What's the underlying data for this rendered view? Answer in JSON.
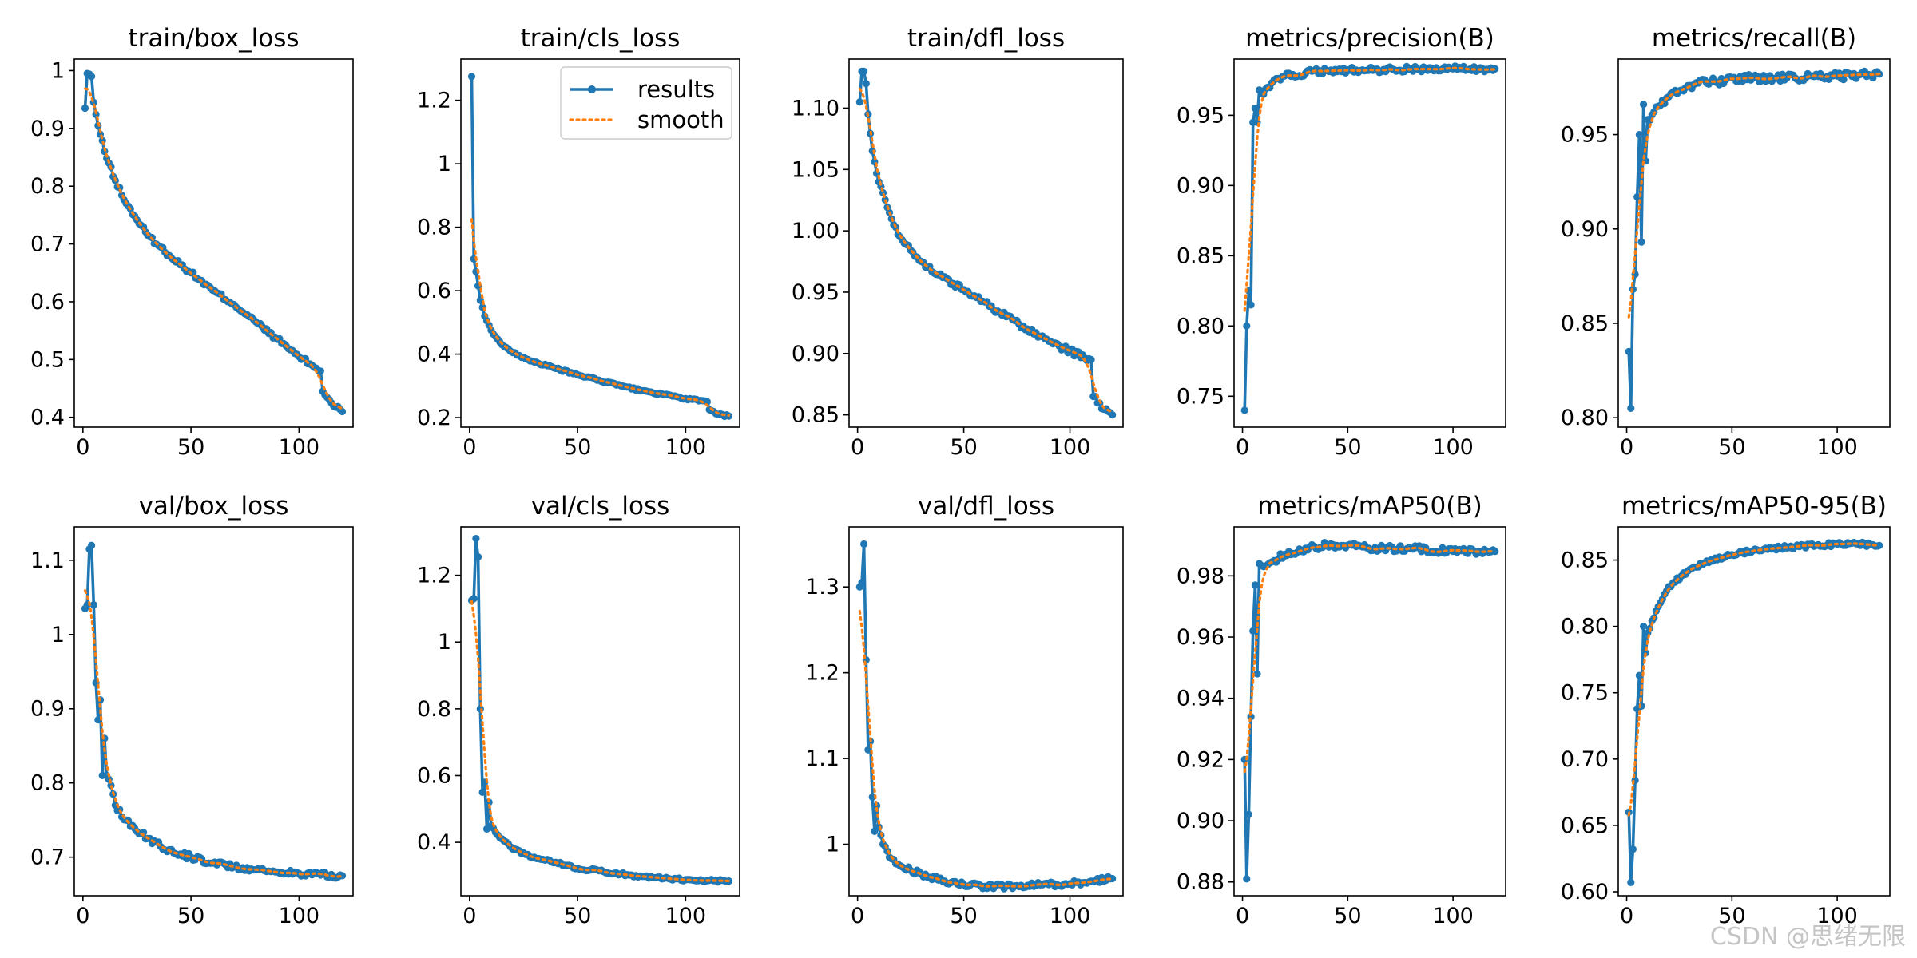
{
  "watermark": "CSDN @思绪无限",
  "colors": {
    "results": "#1f77b4",
    "smooth": "#ff7f0e",
    "axis": "#000000",
    "background": "#ffffff"
  },
  "legend": {
    "results_label": "results",
    "smooth_label": "smooth",
    "panel": "train/cls_loss",
    "placement": "upper-right"
  },
  "chart_data": [
    {
      "type": "line",
      "title": "train/box_loss",
      "xlim": [
        -4,
        125
      ],
      "ylim": [
        0.383,
        1.02
      ],
      "xticks": [
        0,
        50,
        100
      ],
      "yticks": [
        0.4,
        0.5,
        0.6,
        0.7,
        0.8,
        0.9,
        1.0
      ],
      "x_end": 120,
      "anchors": [
        [
          1,
          0.935
        ],
        [
          2,
          0.995
        ],
        [
          4,
          0.99
        ],
        [
          5,
          0.945
        ],
        [
          7,
          0.905
        ],
        [
          10,
          0.86
        ],
        [
          15,
          0.81
        ],
        [
          20,
          0.77
        ],
        [
          30,
          0.715
        ],
        [
          40,
          0.68
        ],
        [
          50,
          0.65
        ],
        [
          60,
          0.62
        ],
        [
          70,
          0.595
        ],
        [
          80,
          0.565
        ],
        [
          90,
          0.535
        ],
        [
          100,
          0.505
        ],
        [
          108,
          0.485
        ],
        [
          110,
          0.48
        ],
        [
          111,
          0.445
        ],
        [
          115,
          0.425
        ],
        [
          120,
          0.41
        ]
      ],
      "noise": 0.004
    },
    {
      "type": "line",
      "title": "train/cls_loss",
      "xlim": [
        -4,
        125
      ],
      "ylim": [
        0.17,
        1.33
      ],
      "xticks": [
        0,
        50,
        100
      ],
      "yticks": [
        0.2,
        0.4,
        0.6,
        0.8,
        1.0,
        1.2
      ],
      "x_end": 120,
      "anchors": [
        [
          1,
          1.275
        ],
        [
          2,
          0.7
        ],
        [
          3,
          0.66
        ],
        [
          5,
          0.57
        ],
        [
          7,
          0.52
        ],
        [
          10,
          0.475
        ],
        [
          15,
          0.43
        ],
        [
          20,
          0.405
        ],
        [
          30,
          0.375
        ],
        [
          40,
          0.355
        ],
        [
          50,
          0.335
        ],
        [
          60,
          0.318
        ],
        [
          70,
          0.3
        ],
        [
          80,
          0.285
        ],
        [
          90,
          0.272
        ],
        [
          100,
          0.26
        ],
        [
          110,
          0.25
        ],
        [
          111,
          0.225
        ],
        [
          115,
          0.21
        ],
        [
          120,
          0.205
        ]
      ],
      "noise": 0.003
    },
    {
      "type": "line",
      "title": "train/dfl_loss",
      "xlim": [
        -4,
        125
      ],
      "ylim": [
        0.84,
        1.14
      ],
      "xticks": [
        0,
        50,
        100
      ],
      "yticks": [
        0.85,
        0.9,
        0.95,
        1.0,
        1.05,
        1.1
      ],
      "x_end": 120,
      "anchors": [
        [
          1,
          1.105
        ],
        [
          2,
          1.13
        ],
        [
          3,
          1.13
        ],
        [
          4,
          1.12
        ],
        [
          5,
          1.095
        ],
        [
          7,
          1.065
        ],
        [
          10,
          1.04
        ],
        [
          15,
          1.015
        ],
        [
          20,
          0.995
        ],
        [
          30,
          0.975
        ],
        [
          40,
          0.962
        ],
        [
          50,
          0.952
        ],
        [
          60,
          0.942
        ],
        [
          70,
          0.93
        ],
        [
          80,
          0.92
        ],
        [
          90,
          0.91
        ],
        [
          100,
          0.902
        ],
        [
          110,
          0.895
        ],
        [
          111,
          0.865
        ],
        [
          115,
          0.855
        ],
        [
          120,
          0.85
        ]
      ],
      "noise": 0.0025
    },
    {
      "type": "line",
      "title": "metrics/precision(B)",
      "xlim": [
        -4,
        125
      ],
      "ylim": [
        0.728,
        0.99
      ],
      "xticks": [
        0,
        50,
        100
      ],
      "yticks": [
        0.75,
        0.8,
        0.85,
        0.9,
        0.95
      ],
      "x_end": 120,
      "anchors": [
        [
          1,
          0.74
        ],
        [
          2,
          0.8
        ],
        [
          3,
          0.825
        ],
        [
          4,
          0.815
        ],
        [
          5,
          0.945
        ],
        [
          6,
          0.955
        ],
        [
          7,
          0.945
        ],
        [
          8,
          0.968
        ],
        [
          10,
          0.965
        ],
        [
          15,
          0.975
        ],
        [
          20,
          0.978
        ],
        [
          30,
          0.98
        ],
        [
          40,
          0.982
        ],
        [
          60,
          0.982
        ],
        [
          80,
          0.983
        ],
        [
          100,
          0.983
        ],
        [
          120,
          0.983
        ]
      ],
      "noise": 0.002
    },
    {
      "type": "line",
      "title": "metrics/recall(B)",
      "xlim": [
        -4,
        125
      ],
      "ylim": [
        0.795,
        0.99
      ],
      "xticks": [
        0,
        50,
        100
      ],
      "yticks": [
        0.8,
        0.85,
        0.9,
        0.95
      ],
      "x_end": 120,
      "anchors": [
        [
          1,
          0.835
        ],
        [
          2,
          0.805
        ],
        [
          3,
          0.868
        ],
        [
          4,
          0.876
        ],
        [
          5,
          0.917
        ],
        [
          6,
          0.95
        ],
        [
          7,
          0.893
        ],
        [
          8,
          0.966
        ],
        [
          9,
          0.936
        ],
        [
          10,
          0.958
        ],
        [
          15,
          0.965
        ],
        [
          20,
          0.97
        ],
        [
          30,
          0.976
        ],
        [
          40,
          0.978
        ],
        [
          60,
          0.98
        ],
        [
          80,
          0.98
        ],
        [
          100,
          0.981
        ],
        [
          120,
          0.982
        ]
      ],
      "noise": 0.002
    },
    {
      "type": "line",
      "title": "val/box_loss",
      "xlim": [
        -4,
        125
      ],
      "ylim": [
        0.648,
        1.145
      ],
      "xticks": [
        0,
        50,
        100
      ],
      "yticks": [
        0.7,
        0.8,
        0.9,
        1.0,
        1.1
      ],
      "x_end": 120,
      "anchors": [
        [
          1,
          1.035
        ],
        [
          2,
          1.04
        ],
        [
          3,
          1.115
        ],
        [
          4,
          1.12
        ],
        [
          5,
          1.04
        ],
        [
          6,
          0.935
        ],
        [
          7,
          0.885
        ],
        [
          8,
          0.912
        ],
        [
          9,
          0.81
        ],
        [
          10,
          0.86
        ],
        [
          11,
          0.81
        ],
        [
          12,
          0.805
        ],
        [
          15,
          0.77
        ],
        [
          20,
          0.75
        ],
        [
          30,
          0.725
        ],
        [
          40,
          0.71
        ],
        [
          50,
          0.7
        ],
        [
          60,
          0.692
        ],
        [
          70,
          0.687
        ],
        [
          80,
          0.683
        ],
        [
          90,
          0.68
        ],
        [
          100,
          0.678
        ],
        [
          110,
          0.676
        ],
        [
          120,
          0.675
        ]
      ],
      "noise": 0.004
    },
    {
      "type": "line",
      "title": "val/cls_loss",
      "xlim": [
        -4,
        125
      ],
      "ylim": [
        0.24,
        1.345
      ],
      "xticks": [
        0,
        50,
        100
      ],
      "yticks": [
        0.4,
        0.6,
        0.8,
        1.0,
        1.2
      ],
      "x_end": 120,
      "anchors": [
        [
          1,
          1.125
        ],
        [
          2,
          1.13
        ],
        [
          3,
          1.31
        ],
        [
          4,
          1.255
        ],
        [
          5,
          0.8
        ],
        [
          6,
          0.55
        ],
        [
          7,
          0.58
        ],
        [
          8,
          0.44
        ],
        [
          9,
          0.52
        ],
        [
          10,
          0.45
        ],
        [
          12,
          0.43
        ],
        [
          15,
          0.41
        ],
        [
          20,
          0.38
        ],
        [
          30,
          0.355
        ],
        [
          40,
          0.34
        ],
        [
          50,
          0.322
        ],
        [
          60,
          0.315
        ],
        [
          70,
          0.305
        ],
        [
          80,
          0.298
        ],
        [
          90,
          0.292
        ],
        [
          100,
          0.288
        ],
        [
          110,
          0.285
        ],
        [
          120,
          0.284
        ]
      ],
      "noise": 0.004
    },
    {
      "type": "line",
      "title": "val/dfl_loss",
      "xlim": [
        -4,
        125
      ],
      "ylim": [
        0.94,
        1.37
      ],
      "xticks": [
        0,
        50,
        100
      ],
      "yticks": [
        1.0,
        1.1,
        1.2,
        1.3
      ],
      "x_end": 120,
      "anchors": [
        [
          1,
          1.3
        ],
        [
          2,
          1.305
        ],
        [
          3,
          1.35
        ],
        [
          4,
          1.215
        ],
        [
          5,
          1.11
        ],
        [
          6,
          1.12
        ],
        [
          7,
          1.055
        ],
        [
          8,
          1.015
        ],
        [
          9,
          1.045
        ],
        [
          10,
          1.02
        ],
        [
          12,
          1.0
        ],
        [
          15,
          0.985
        ],
        [
          20,
          0.975
        ],
        [
          30,
          0.965
        ],
        [
          40,
          0.957
        ],
        [
          50,
          0.953
        ],
        [
          60,
          0.951
        ],
        [
          70,
          0.951
        ],
        [
          80,
          0.952
        ],
        [
          90,
          0.953
        ],
        [
          100,
          0.954
        ],
        [
          110,
          0.957
        ],
        [
          120,
          0.96
        ]
      ],
      "noise": 0.003
    },
    {
      "type": "line",
      "title": "metrics/mAP50(B)",
      "xlim": [
        -4,
        125
      ],
      "ylim": [
        0.8755,
        0.996
      ],
      "xticks": [
        0,
        50,
        100
      ],
      "yticks": [
        0.88,
        0.9,
        0.92,
        0.94,
        0.96,
        0.98
      ],
      "x_end": 120,
      "anchors": [
        [
          1,
          0.92
        ],
        [
          2,
          0.881
        ],
        [
          3,
          0.902
        ],
        [
          4,
          0.934
        ],
        [
          5,
          0.962
        ],
        [
          6,
          0.977
        ],
        [
          7,
          0.948
        ],
        [
          8,
          0.984
        ],
        [
          10,
          0.983
        ],
        [
          15,
          0.985
        ],
        [
          20,
          0.987
        ],
        [
          30,
          0.989
        ],
        [
          40,
          0.99
        ],
        [
          50,
          0.99
        ],
        [
          60,
          0.989
        ],
        [
          80,
          0.989
        ],
        [
          100,
          0.988
        ],
        [
          120,
          0.988
        ]
      ],
      "noise": 0.001
    },
    {
      "type": "line",
      "title": "metrics/mAP50-95(B)",
      "xlim": [
        -4,
        125
      ],
      "ylim": [
        0.597,
        0.875
      ],
      "xticks": [
        0,
        50,
        100
      ],
      "yticks": [
        0.6,
        0.65,
        0.7,
        0.75,
        0.8,
        0.85
      ],
      "x_end": 120,
      "anchors": [
        [
          1,
          0.66
        ],
        [
          2,
          0.607
        ],
        [
          3,
          0.632
        ],
        [
          4,
          0.684
        ],
        [
          5,
          0.738
        ],
        [
          6,
          0.763
        ],
        [
          7,
          0.74
        ],
        [
          8,
          0.8
        ],
        [
          9,
          0.78
        ],
        [
          10,
          0.795
        ],
        [
          15,
          0.815
        ],
        [
          20,
          0.83
        ],
        [
          30,
          0.843
        ],
        [
          40,
          0.85
        ],
        [
          50,
          0.854
        ],
        [
          60,
          0.857
        ],
        [
          70,
          0.859
        ],
        [
          80,
          0.86
        ],
        [
          90,
          0.861
        ],
        [
          100,
          0.862
        ],
        [
          110,
          0.862
        ],
        [
          120,
          0.861
        ]
      ],
      "noise": 0.0015
    }
  ]
}
